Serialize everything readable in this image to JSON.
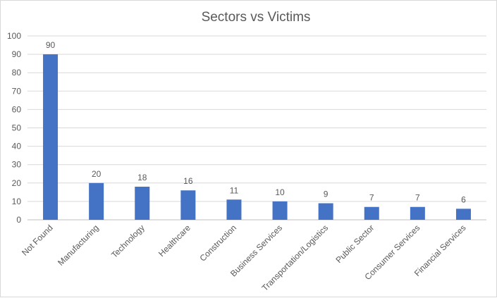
{
  "chart_data": {
    "type": "bar",
    "title": "Sectors vs Victims",
    "xlabel": "",
    "ylabel": "",
    "categories": [
      "Not Found",
      "Manufacturing",
      "Technology",
      "Healthcare",
      "Construction",
      "Business Services",
      "Transportation/Logistics",
      "Public Sector",
      "Consumer Services",
      "Financial Services"
    ],
    "values": [
      90,
      20,
      18,
      16,
      11,
      10,
      9,
      7,
      7,
      6
    ],
    "ylim": [
      0,
      100
    ],
    "yticks": [
      0,
      10,
      20,
      30,
      40,
      50,
      60,
      70,
      80,
      90,
      100
    ],
    "grid": true,
    "data_labels": true,
    "legend": "none",
    "colors": {
      "bar": "#4472c4",
      "grid": "#d9d9d9",
      "text": "#595959"
    }
  }
}
